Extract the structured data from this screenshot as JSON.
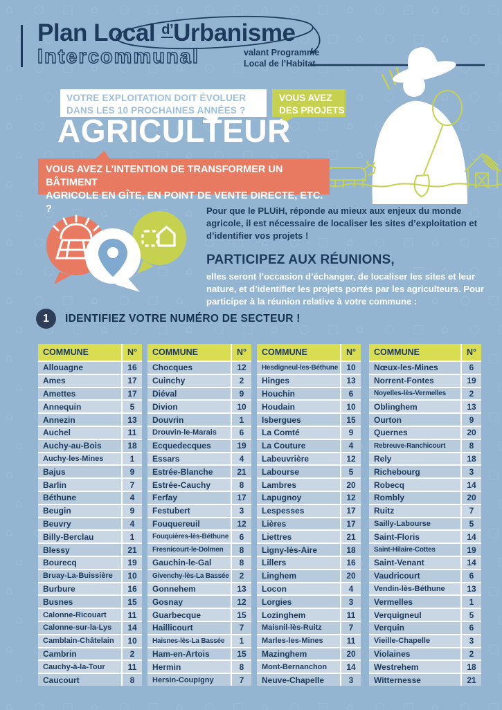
{
  "header": {
    "title_prefix": "Plan Local ",
    "title_d": "d’",
    "title_main": "Urbanisme",
    "title_outline": "Intercommunal",
    "tagline_line1": "valant Programme",
    "tagline_line2": "Local de l’Habitat"
  },
  "banners": {
    "question1_line1": "VOTRE EXPLOITATION DOIT ÉVOLUER",
    "question1_line2": "DANS LES 10 PROCHAINES ANNÉES ?",
    "question2_line1": "VOUS AVEZ",
    "question2_line2": "DES PROJETS ?",
    "audience": "AGRICULTEUR",
    "question3_line1": "VOUS AVEZ L’INTENTION DE TRANSFORMER UN BÂTIMENT",
    "question3_line2": "AGRICOLE EN GÎTE, EN POINT DE VENTE DIRECTE, ETC. ?"
  },
  "intro": {
    "paragraph": "Pour que le PLUiH, réponde au mieux aux enjeux du monde agricole, il est nécessaire de localiser les sites d’exploitation et d’identifier vos projets !",
    "meetings_title": "PARTICIPEZ AUX RÉUNIONS,",
    "meetings_text": "elles seront l’occasion d’échanger, de localiser les sites et leur nature, et d’identifier les projets portés par les agriculteurs. Pour participer à la réunion relative à votre commune :"
  },
  "section1": {
    "number": "1",
    "title": "IDENTIFIEZ VOTRE NUMÉRO DE SECTEUR !"
  },
  "table": {
    "header_commune": "COMMUNE",
    "header_number": "N°",
    "columns": [
      [
        [
          "Allouagne",
          "16"
        ],
        [
          "Ames",
          "17"
        ],
        [
          "Amettes",
          "17"
        ],
        [
          "Annequin",
          "5"
        ],
        [
          "Annezin",
          "13"
        ],
        [
          "Auchel",
          "11"
        ],
        [
          "Auchy-au-Bois",
          "18"
        ],
        [
          "Auchy-les-Mines",
          "1"
        ],
        [
          "Bajus",
          "9"
        ],
        [
          "Barlin",
          "7"
        ],
        [
          "Béthune",
          "4"
        ],
        [
          "Beugin",
          "9"
        ],
        [
          "Beuvry",
          "4"
        ],
        [
          "Billy-Berclau",
          "1"
        ],
        [
          "Blessy",
          "21"
        ],
        [
          "Bourecq",
          "19"
        ],
        [
          "Bruay-La-Buissière",
          "10"
        ],
        [
          "Burbure",
          "16"
        ],
        [
          "Busnes",
          "15"
        ],
        [
          "Calonne-Ricouart",
          "11"
        ],
        [
          "Calonne-sur-la-Lys",
          "14"
        ],
        [
          "Camblain-Châtelain",
          "10"
        ],
        [
          "Cambrin",
          "2"
        ],
        [
          "Cauchy-à-la-Tour",
          "11"
        ],
        [
          "Caucourt",
          "8"
        ]
      ],
      [
        [
          "Chocques",
          "12"
        ],
        [
          "Cuinchy",
          "2"
        ],
        [
          "Diéval",
          "9"
        ],
        [
          "Divion",
          "10"
        ],
        [
          "Douvrin",
          "1"
        ],
        [
          "Drouvin-le-Marais",
          "6"
        ],
        [
          "Ecquedecques",
          "19"
        ],
        [
          "Essars",
          "4"
        ],
        [
          "Estrée-Blanche",
          "21"
        ],
        [
          "Estrée-Cauchy",
          "8"
        ],
        [
          "Ferfay",
          "17"
        ],
        [
          "Festubert",
          "3"
        ],
        [
          "Fouquereuil",
          "12"
        ],
        [
          "Fouquières-lès-Béthune",
          "6"
        ],
        [
          "Fresnicourt-le-Dolmen",
          "8"
        ],
        [
          "Gauchin-le-Gal",
          "8"
        ],
        [
          "Givenchy-lès-La Bassée",
          "2"
        ],
        [
          "Gonnehem",
          "13"
        ],
        [
          "Gosnay",
          "12"
        ],
        [
          "Guarbecque",
          "15"
        ],
        [
          "Haillicourt",
          "7"
        ],
        [
          "Haisnes-lès-La Bassée",
          "1"
        ],
        [
          "Ham-en-Artois",
          "15"
        ],
        [
          "Hermin",
          "8"
        ],
        [
          "Hersin-Coupigny",
          "7"
        ]
      ],
      [
        [
          "Hesdigneul-les-Béthune",
          "10"
        ],
        [
          "Hinges",
          "13"
        ],
        [
          "Houchin",
          "6"
        ],
        [
          "Houdain",
          "10"
        ],
        [
          "Isbergues",
          "15"
        ],
        [
          "La Comté",
          "9"
        ],
        [
          "La Couture",
          "4"
        ],
        [
          "Labeuvrière",
          "12"
        ],
        [
          "Labourse",
          "5"
        ],
        [
          "Lambres",
          "20"
        ],
        [
          "Lapugnoy",
          "12"
        ],
        [
          "Lespesses",
          "17"
        ],
        [
          "Lières",
          "17"
        ],
        [
          "Liettres",
          "21"
        ],
        [
          "Ligny-lès-Aire",
          "18"
        ],
        [
          "Lillers",
          "16"
        ],
        [
          "Linghem",
          "20"
        ],
        [
          "Locon",
          "4"
        ],
        [
          "Lorgies",
          "3"
        ],
        [
          "Lozinghem",
          "11"
        ],
        [
          "Maisnil-lès-Ruitz",
          "7"
        ],
        [
          "Marles-les-Mines",
          "11"
        ],
        [
          "Mazinghem",
          "20"
        ],
        [
          "Mont-Bernanchon",
          "14"
        ],
        [
          "Neuve-Chapelle",
          "3"
        ]
      ],
      [
        [
          "Nœux-les-Mines",
          "6"
        ],
        [
          "Norrent-Fontes",
          "19"
        ],
        [
          "Noyelles-lès-Vermelles",
          "2"
        ],
        [
          "Oblinghem",
          "13"
        ],
        [
          "Ourton",
          "9"
        ],
        [
          "Quernes",
          "20"
        ],
        [
          "Rebreuve-Ranchicourt",
          "8"
        ],
        [
          "Rely",
          "18"
        ],
        [
          "Richebourg",
          "3"
        ],
        [
          "Robecq",
          "14"
        ],
        [
          "Rombly",
          "20"
        ],
        [
          "Ruitz",
          "7"
        ],
        [
          "Sailly-Labourse",
          "5"
        ],
        [
          "Saint-Floris",
          "14"
        ],
        [
          "Saint-Hilaire-Cottes",
          "19"
        ],
        [
          "Saint-Venant",
          "14"
        ],
        [
          "Vaudricourt",
          "6"
        ],
        [
          "Vendin-lès-Béthune",
          "13"
        ],
        [
          "Vermelles",
          "1"
        ],
        [
          "Verquigneul",
          "5"
        ],
        [
          "Verquin",
          "6"
        ],
        [
          "Vieille-Chapelle",
          "3"
        ],
        [
          "Violaines",
          "2"
        ],
        [
          "Westrehem",
          "18"
        ],
        [
          "Witternesse",
          "21"
        ]
      ]
    ]
  },
  "icons": {
    "bubble1": "field-sun-icon",
    "bubble2": "map-pin-icon",
    "bubble3": "house-transform-icon",
    "illustration": "farmer-shovel-cow-barn-illustration"
  },
  "colors": {
    "background": "#93b5d2",
    "navy": "#1d3a5c",
    "coral": "#e87a62",
    "yellow_green": "#c6d14f",
    "table_header": "#d8dd52",
    "row_dark": "#b7cbdd",
    "row_light": "#c9d6e3",
    "banner1_text": "#9cc0dc",
    "pin_blue": "#7fa9cf",
    "white": "#ffffff"
  }
}
